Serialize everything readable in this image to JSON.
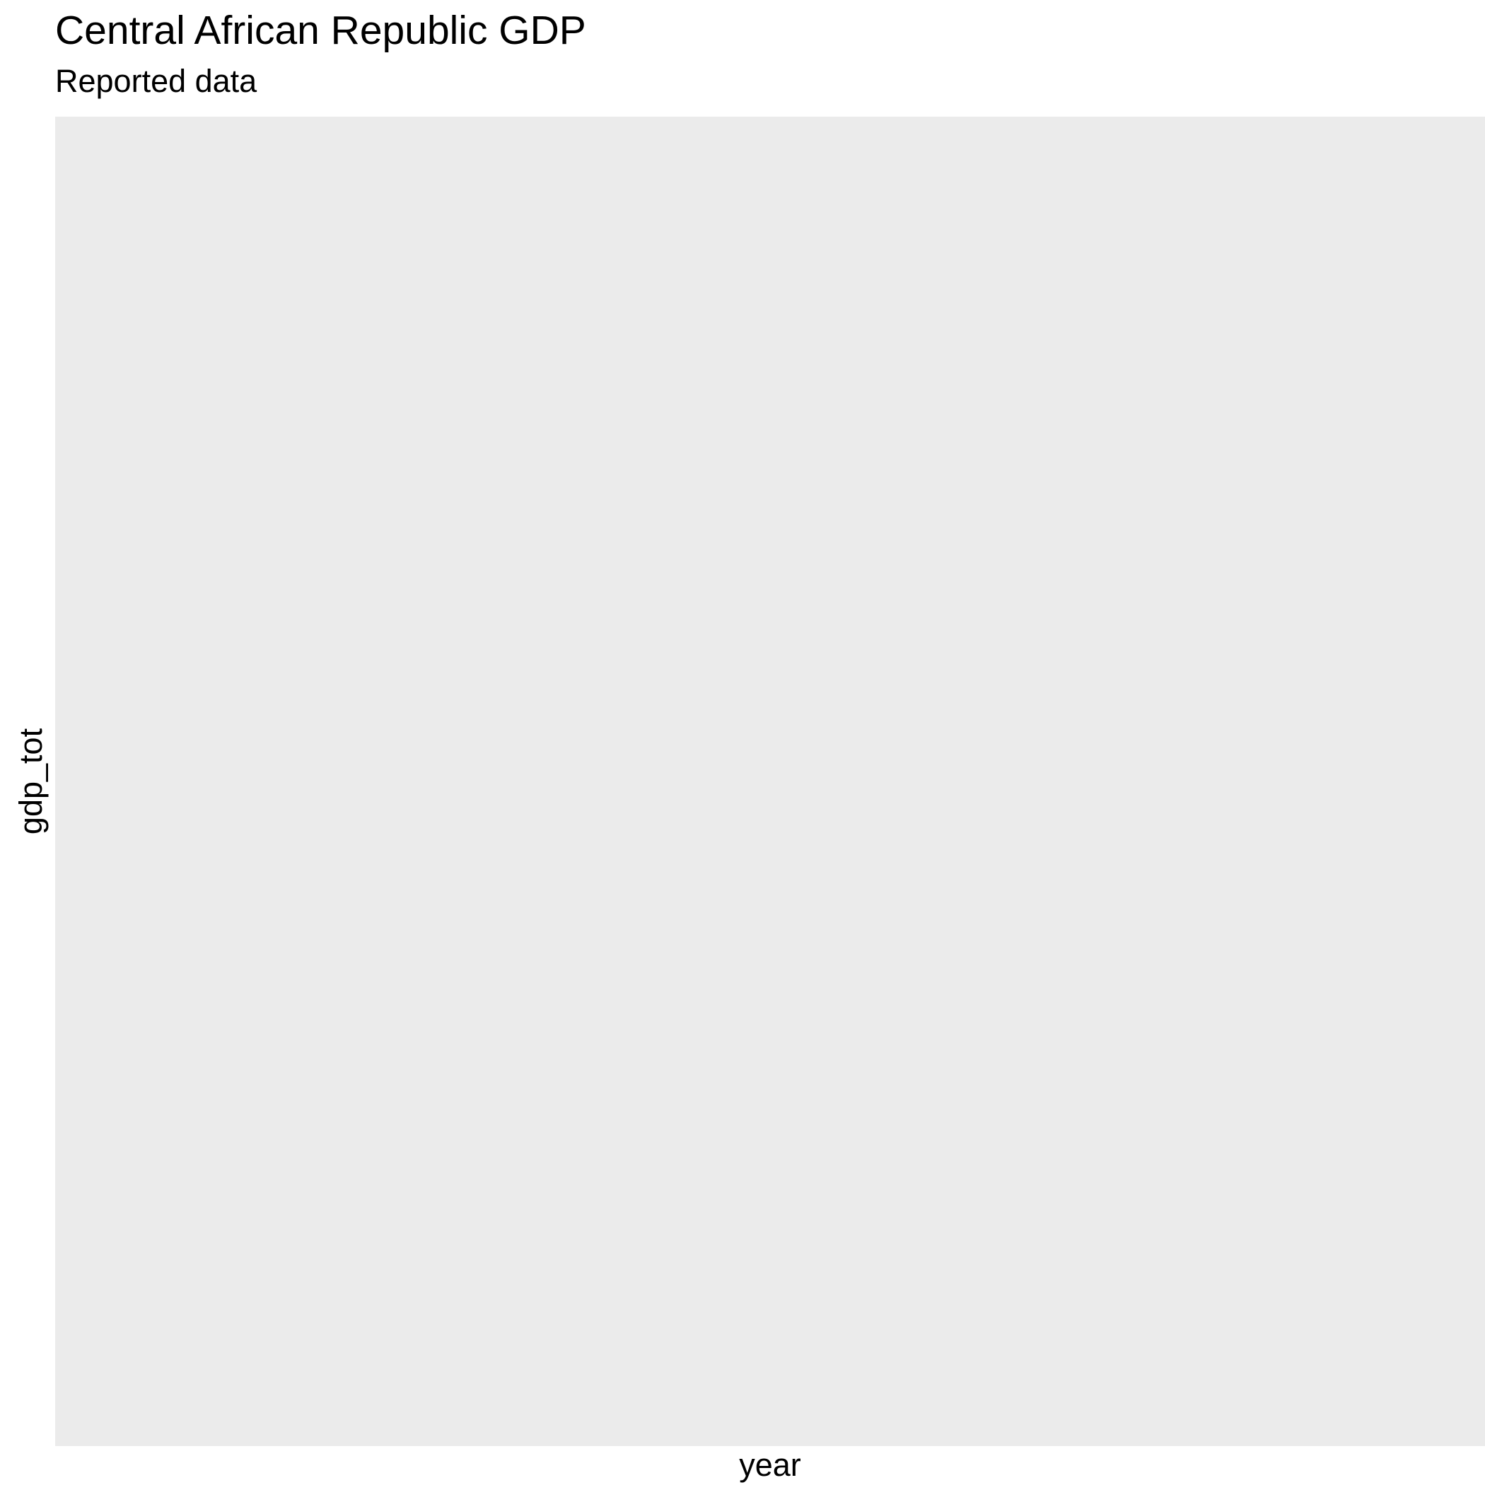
{
  "chart_data": {
    "type": "line",
    "title": "Central African Republic GDP",
    "subtitle": "Reported data",
    "xlabel": "year",
    "ylabel": "gdp_tot",
    "x": [],
    "series": [],
    "grid": false,
    "panel_background": "#ebebeb"
  }
}
